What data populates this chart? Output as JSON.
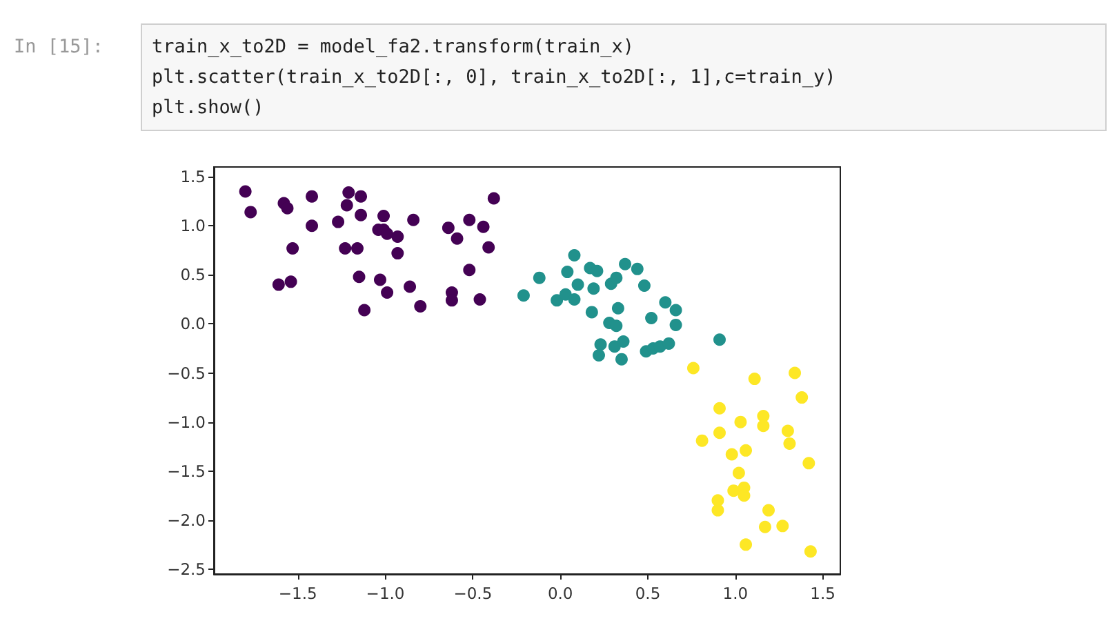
{
  "chart_data": {
    "type": "scatter",
    "annotations": [
      "In [15]:",
      "train_x_to2D = model_fa2.transform(train_x)",
      "plt.scatter(train_x_to2D[:, 0], train_x_to2D[:, 1],c=train_y)",
      "plt.show()"
    ],
    "series": [
      {
        "color": "#440154",
        "x": [
          -1.8,
          -1.77,
          -1.58,
          -1.56,
          -1.42,
          -1.42,
          -1.53,
          -1.61,
          -1.54,
          -1.27,
          -1.21,
          -1.14,
          -1.22,
          -1.14,
          -1.23,
          -1.16,
          -1.15,
          -1.12,
          -1.01,
          -1.04,
          -1.01,
          -0.99,
          -0.93,
          -0.93,
          -1.03,
          -0.99,
          -0.84,
          -0.86,
          -0.8,
          -0.64,
          -0.59,
          -0.62,
          -0.62,
          -0.52,
          -0.44,
          -0.52,
          -0.46,
          -0.41,
          -0.38
        ],
        "values": [
          1.35,
          1.14,
          1.23,
          1.18,
          1.3,
          1.0,
          0.77,
          0.4,
          0.43,
          1.04,
          1.34,
          1.3,
          1.21,
          1.11,
          0.77,
          0.77,
          0.48,
          0.14,
          1.1,
          0.96,
          0.96,
          0.92,
          0.89,
          0.72,
          0.45,
          0.32,
          1.06,
          0.38,
          0.18,
          0.98,
          0.87,
          0.32,
          0.24,
          1.06,
          0.99,
          0.55,
          0.25,
          0.78,
          1.28
        ]
      },
      {
        "color": "#21918c",
        "x": [
          0.08,
          -0.12,
          -0.21,
          0.04,
          0.1,
          -0.02,
          0.03,
          0.08,
          0.17,
          0.21,
          0.19,
          0.29,
          0.32,
          0.37,
          0.44,
          0.48,
          0.18,
          0.33,
          0.28,
          0.32,
          0.52,
          0.6,
          0.66,
          0.66,
          0.23,
          0.22,
          0.31,
          0.36,
          0.35,
          0.49,
          0.53,
          0.57,
          0.62,
          0.91
        ],
        "values": [
          0.7,
          0.47,
          0.29,
          0.53,
          0.4,
          0.24,
          0.3,
          0.25,
          0.57,
          0.54,
          0.36,
          0.41,
          0.47,
          0.61,
          0.56,
          0.39,
          0.12,
          0.16,
          0.01,
          -0.02,
          0.06,
          0.22,
          0.14,
          -0.01,
          -0.21,
          -0.32,
          -0.23,
          -0.18,
          -0.36,
          -0.28,
          -0.25,
          -0.23,
          -0.2,
          -0.16
        ]
      },
      {
        "color": "#fde725",
        "x": [
          0.76,
          1.11,
          1.34,
          1.38,
          0.91,
          1.03,
          1.16,
          1.16,
          1.3,
          1.31,
          0.91,
          0.81,
          0.98,
          1.06,
          1.42,
          1.02,
          0.99,
          1.05,
          1.05,
          0.9,
          0.9,
          1.19,
          1.17,
          1.27,
          1.06,
          1.43
        ],
        "values": [
          -0.45,
          -0.56,
          -0.5,
          -0.75,
          -0.86,
          -1.0,
          -0.94,
          -1.04,
          -1.09,
          -1.22,
          -1.11,
          -1.19,
          -1.33,
          -1.29,
          -1.42,
          -1.52,
          -1.7,
          -1.67,
          -1.75,
          -1.8,
          -1.9,
          -1.9,
          -2.07,
          -2.06,
          -2.25,
          -2.32
        ]
      }
    ],
    "xlim": [
      -1.98,
      1.6
    ],
    "ylim": [
      -2.55,
      1.6
    ],
    "xticks": [
      {
        "value": -1.5,
        "label": "−1.5"
      },
      {
        "value": -1.0,
        "label": "−1.0"
      },
      {
        "value": -0.5,
        "label": "−0.5"
      },
      {
        "value": 0,
        "label": "0.0"
      },
      {
        "value": 0.5,
        "label": "0.5"
      },
      {
        "value": 1.0,
        "label": "1.0"
      },
      {
        "value": 1.5,
        "label": "1.5"
      }
    ],
    "yticks": [
      {
        "value": -2.5,
        "label": "−2.5"
      },
      {
        "value": -2.0,
        "label": "−2.0"
      },
      {
        "value": -1.5,
        "label": "−1.5"
      },
      {
        "value": -1.0,
        "label": "−1.0"
      },
      {
        "value": -0.5,
        "label": "−0.5"
      },
      {
        "value": 0,
        "label": "0.0"
      },
      {
        "value": 0.5,
        "label": "0.5"
      },
      {
        "value": 1.0,
        "label": "1.0"
      },
      {
        "value": 1.5,
        "label": "1.5"
      }
    ],
    "grid": false,
    "marker": "circle"
  }
}
